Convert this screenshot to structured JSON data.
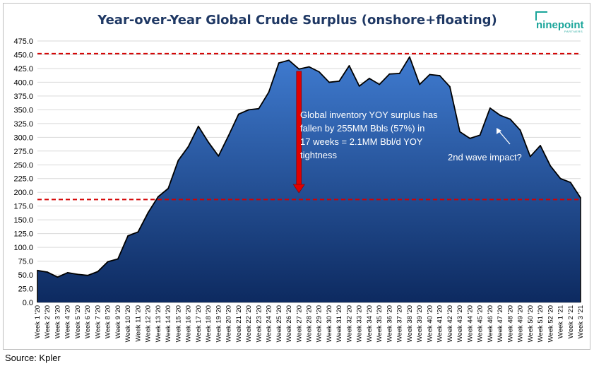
{
  "source_note": "Source: Kpler",
  "logo": {
    "text": "ninepoint",
    "subtext": "PARTNERS"
  },
  "colors": {
    "area_top": "#3f7bd0",
    "area_bottom": "#0d2a60",
    "reference_line": "#d40000",
    "arrow": "#e00000",
    "grid": "#d9d9d9",
    "title": "#1f3864"
  },
  "chart_data": {
    "type": "area",
    "title": "Year-over-Year Global Crude Surplus (onshore+floating)",
    "xlabel": "",
    "ylabel": "",
    "ylim": [
      0,
      475
    ],
    "y_ticks": [
      "0.0",
      "25.0",
      "50.0",
      "75.0",
      "100.0",
      "125.0",
      "150.0",
      "175.0",
      "200.0",
      "225.0",
      "250.0",
      "275.0",
      "300.0",
      "325.0",
      "350.0",
      "375.0",
      "400.0",
      "425.0",
      "450.0",
      "475.0"
    ],
    "grid": "horizontal",
    "legend": "none",
    "categories": [
      "Week 1 '20",
      "Week 2 '20",
      "Week 3 '20",
      "Week 4 '20",
      "Week 5 '20",
      "Week 6 '20",
      "Week 7 '20",
      "Week 8 '20",
      "Week 9 '20",
      "Week 10 '20",
      "Week 11 '20",
      "Week 12 '20",
      "Week 13 '20",
      "Week 14 '20",
      "Week 15 '20",
      "Week 16 '20",
      "Week 17 '20",
      "Week 18 '20",
      "Week 19 '20",
      "Week 20 '20",
      "Week 21 '20",
      "Week 22 '20",
      "Week 23 '20",
      "Week 24 '20",
      "Week 25 '20",
      "Week 26 '20",
      "Week 27 '20",
      "Week 28 '20",
      "Week 29 '20",
      "Week 30 '20",
      "Week 31 '20",
      "Week 32 '20",
      "Week 33 '20",
      "Week 34 '20",
      "Week 35 '20",
      "Week 36 '20",
      "Week 37 '20",
      "Week 38 '20",
      "Week 39 '20",
      "Week 40 '20",
      "Week 41 '20",
      "Week 42 '20",
      "Week 43 '20",
      "Week 44 '20",
      "Week 45 '20",
      "Week 46 '20",
      "Week 47 '20",
      "Week 48 '20",
      "Week 49 '20",
      "Week 50 '20",
      "Week 51 '20",
      "Week 52 '20",
      "Week 1 '21",
      "Week 2 '21",
      "Week 3 '21"
    ],
    "values": [
      58,
      55,
      46,
      54,
      51,
      49,
      56,
      74,
      79,
      121,
      128,
      163,
      192,
      207,
      258,
      283,
      320,
      291,
      266,
      303,
      342,
      350,
      352,
      382,
      435,
      440,
      424,
      428,
      419,
      400,
      402,
      430,
      393,
      407,
      396,
      415,
      416,
      446,
      396,
      414,
      412,
      392,
      310,
      298,
      304,
      353,
      340,
      333,
      313,
      265,
      285,
      248,
      225,
      218,
      190
    ],
    "reference_lines": [
      452,
      187
    ],
    "arrow": {
      "from": 420,
      "to": 199,
      "category": "Week 27 '20"
    },
    "annotations": [
      {
        "lines": [
          "Global inventory YOY surplus has",
          "fallen by 255MM Bbls (57%) in",
          "17 weeks =  2.1MM Bbl/d YOY",
          "tightness"
        ]
      },
      {
        "lines": [
          "2nd wave impact?"
        ]
      }
    ]
  }
}
